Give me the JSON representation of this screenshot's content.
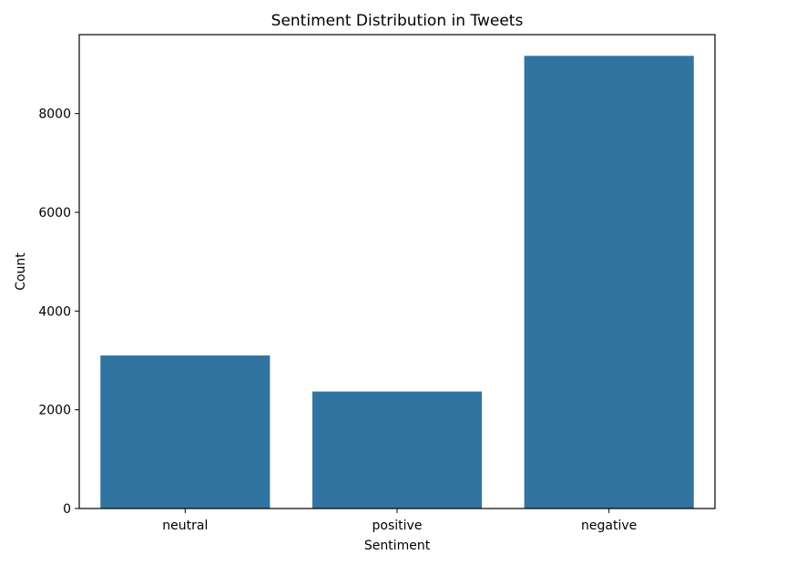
{
  "chart_data": {
    "type": "bar",
    "title": "Sentiment Distribution in Tweets",
    "xlabel": "Sentiment",
    "ylabel": "Count",
    "categories": [
      "neutral",
      "positive",
      "negative"
    ],
    "values": [
      3100,
      2370,
      9170
    ],
    "ylim": [
      0,
      9600
    ],
    "yticks": [
      0,
      2000,
      4000,
      6000,
      8000
    ],
    "ytick_labels": [
      "0",
      "2000",
      "4000",
      "6000",
      "8000"
    ],
    "grid": false,
    "legend": "none",
    "colors": {
      "bar": "#3274a1",
      "axes": "#000000",
      "background": "#ffffff"
    }
  }
}
